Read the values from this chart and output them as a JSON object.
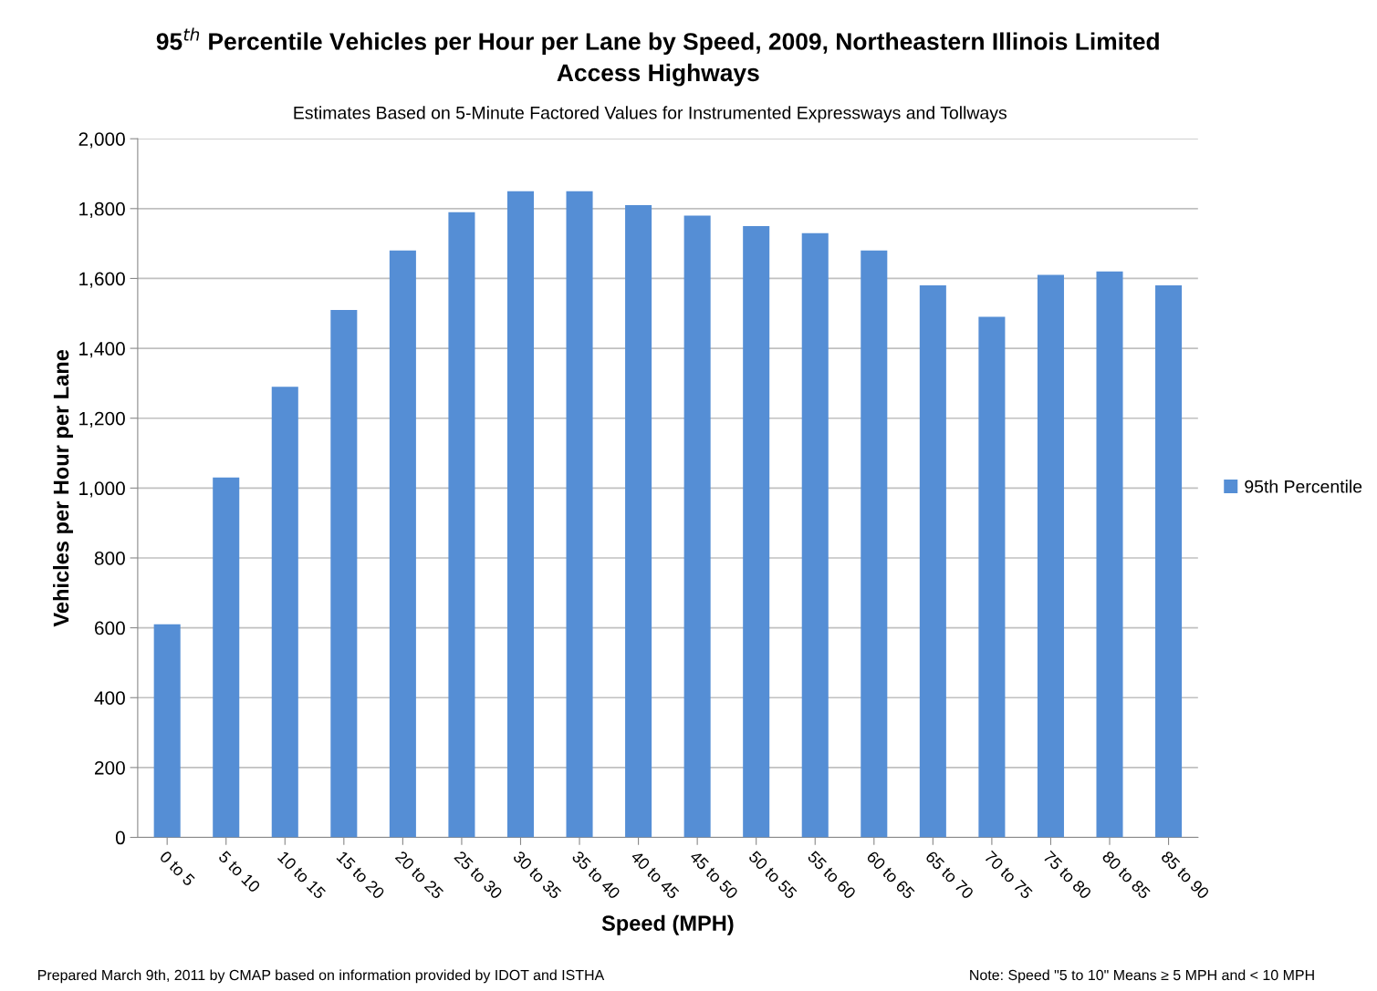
{
  "chart_data": {
    "type": "bar",
    "title": "95$^{th}$ Percentile Vehicles per Hour per Lane by Speed, 2009, Northeastern Illinois Limited\nAccess Highways",
    "subtitle": "Estimates Based on 5-Minute Factored Values for Instrumented Expressways and Tollways",
    "xlabel": "Speed (MPH)",
    "ylabel": "Vehicles per Hour per Lane",
    "categories": [
      "0 to 5",
      "5 to 10",
      "10 to 15",
      "15 to 20",
      "20 to 25",
      "25 to 30",
      "30 to 35",
      "35 to 40",
      "40 to 45",
      "45 to 50",
      "50 to 55",
      "55 to 60",
      "60 to 65",
      "65 to 70",
      "70 to 75",
      "75 to 80",
      "80 to 85",
      "85 to 90"
    ],
    "series": [
      {
        "name": "95th Percentile",
        "color": "#558ed5",
        "values": [
          610,
          1030,
          1290,
          1510,
          1680,
          1790,
          1850,
          1850,
          1810,
          1780,
          1750,
          1730,
          1680,
          1580,
          1490,
          1610,
          1620,
          1580
        ]
      }
    ],
    "ylim": [
      0,
      2000
    ],
    "yticks": [
      {
        "value": 0,
        "label": "0"
      },
      {
        "value": 200,
        "label": "200"
      },
      {
        "value": 400,
        "label": "400"
      },
      {
        "value": 600,
        "label": "600"
      },
      {
        "value": 800,
        "label": "800"
      },
      {
        "value": 1000,
        "label": "1,000"
      },
      {
        "value": 1200,
        "label": "1,200"
      },
      {
        "value": 1400,
        "label": "1,400"
      },
      {
        "value": 1600,
        "label": "1,600"
      },
      {
        "value": 1800,
        "label": "1,800"
      },
      {
        "value": 2000,
        "label": "2,000"
      }
    ],
    "grid": "y",
    "legend": "right",
    "annotations": [
      "Prepared March 9th, 2011 by CMAP based on information provided by IDOT and ISTHA",
      "Note: Speed \"5 to 10\" Means ≥ 5 MPH and < 10 MPH"
    ]
  }
}
